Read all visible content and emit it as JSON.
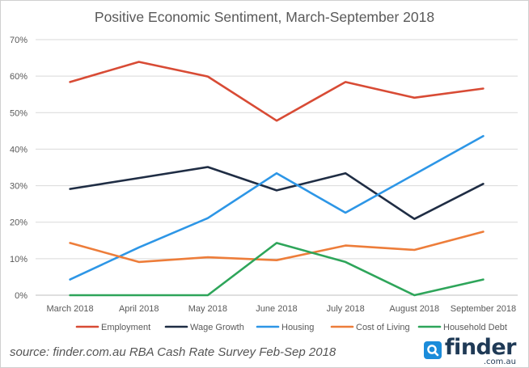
{
  "chart_data": {
    "type": "line",
    "title": "Positive Economic Sentiment, March-September 2018",
    "xlabel": "",
    "ylabel": "",
    "categories": [
      "March 2018",
      "April 2018",
      "May 2018",
      "June 2018",
      "July 2018",
      "August 2018",
      "September 2018"
    ],
    "ylim": [
      0,
      70
    ],
    "yticks": [
      0,
      10,
      20,
      30,
      40,
      50,
      60,
      70
    ],
    "ytick_labels": [
      "0%",
      "10%",
      "20%",
      "30%",
      "40%",
      "50%",
      "60%",
      "70%"
    ],
    "grid": true,
    "legend": "bottom",
    "series": [
      {
        "name": "Employment",
        "color": "#d84b35",
        "values": [
          58.4,
          63.9,
          59.9,
          47.8,
          58.4,
          54.1,
          56.6
        ]
      },
      {
        "name": "Wage Growth",
        "color": "#1f2d44",
        "values": [
          29.1,
          32.1,
          35.1,
          28.7,
          33.4,
          20.9,
          30.5
        ]
      },
      {
        "name": "Housing",
        "color": "#2d96e6",
        "values": [
          4.3,
          13.1,
          21.1,
          33.4,
          22.6,
          33.1,
          43.6
        ]
      },
      {
        "name": "Cost of Living",
        "color": "#ed7d3a",
        "values": [
          14.3,
          9.1,
          10.4,
          9.6,
          13.6,
          12.4,
          17.4
        ]
      },
      {
        "name": "Household Debt",
        "color": "#2ea55a",
        "values": [
          0,
          0,
          0,
          14.3,
          9.1,
          0,
          4.3
        ]
      }
    ]
  },
  "footer": {
    "source": "source: finder.com.au RBA Cash Rate Survey Feb-Sep 2018"
  },
  "logo": {
    "word": "finder",
    "sub": ".com.au",
    "color": "#1f3a56",
    "accent": "#1b8cda"
  }
}
